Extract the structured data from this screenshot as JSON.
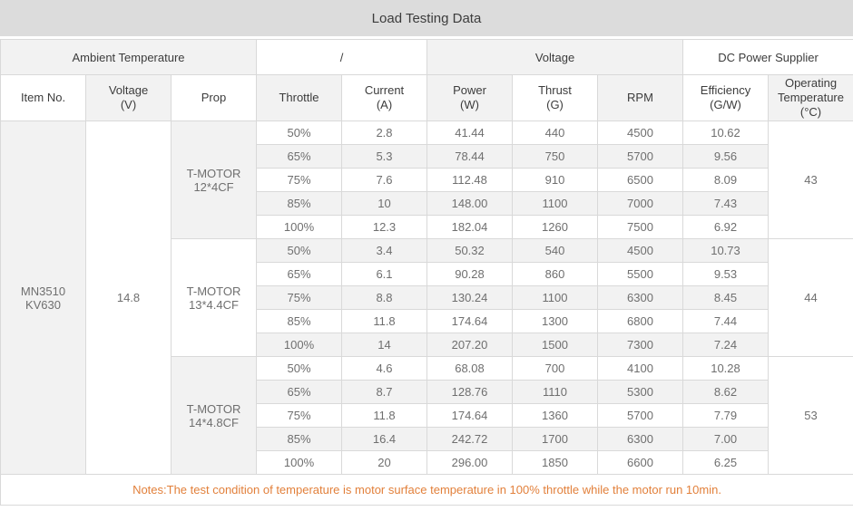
{
  "colors": {
    "title_bar_bg": "#dcdcdc",
    "shaded": "#f2f2f2",
    "border": "#d9d9d9",
    "header_text": "#3c3c3c",
    "body_text": "#6f6f6f",
    "muted_text": "#9c9c9c",
    "notes_text": "#e2803b"
  },
  "title": "Load Testing Data",
  "group_headers": {
    "ambient": "Ambient Temperature",
    "slash": "/",
    "voltage": "Voltage",
    "dc_power": "DC Power Supplier"
  },
  "columns": {
    "item_no": "Item No.",
    "voltage": "Voltage\n(V)",
    "prop": "Prop",
    "throttle": "Throttle",
    "current": "Current\n(A)",
    "power": "Power\n(W)",
    "thrust": "Thrust\n(G)",
    "rpm": "RPM",
    "efficiency": "Efficiency\n(G/W)",
    "operating_temperature": "Operating\nTemperature\n(°C)"
  },
  "item_no": "MN3510\nKV630",
  "voltage_v": "14.8",
  "prop_groups": [
    {
      "prop": "T-MOTOR\n12*4CF",
      "operating_temperature": "43",
      "rows": [
        {
          "throttle": "50%",
          "current": "2.8",
          "power": "41.44",
          "thrust": "440",
          "rpm": "4500",
          "efficiency": "10.62"
        },
        {
          "throttle": "65%",
          "current": "5.3",
          "power": "78.44",
          "thrust": "750",
          "rpm": "5700",
          "efficiency": "9.56"
        },
        {
          "throttle": "75%",
          "current": "7.6",
          "power": "112.48",
          "thrust": "910",
          "rpm": "6500",
          "efficiency": "8.09"
        },
        {
          "throttle": "85%",
          "current": "10",
          "power": "148.00",
          "thrust": "1100",
          "rpm": "7000",
          "efficiency": "7.43"
        },
        {
          "throttle": "100%",
          "current": "12.3",
          "power": "182.04",
          "thrust": "1260",
          "rpm": "7500",
          "efficiency": "6.92"
        }
      ]
    },
    {
      "prop": "T-MOTOR\n13*4.4CF",
      "operating_temperature": "44",
      "rows": [
        {
          "throttle": "50%",
          "current": "3.4",
          "power": "50.32",
          "thrust": "540",
          "rpm": "4500",
          "efficiency": "10.73"
        },
        {
          "throttle": "65%",
          "current": "6.1",
          "power": "90.28",
          "thrust": "860",
          "rpm": "5500",
          "efficiency": "9.53"
        },
        {
          "throttle": "75%",
          "current": "8.8",
          "power": "130.24",
          "thrust": "1100",
          "rpm": "6300",
          "efficiency": "8.45"
        },
        {
          "throttle": "85%",
          "current": "11.8",
          "power": "174.64",
          "thrust": "1300",
          "rpm": "6800",
          "efficiency": "7.44"
        },
        {
          "throttle": "100%",
          "current": "14",
          "power": "207.20",
          "thrust": "1500",
          "rpm": "7300",
          "efficiency": "7.24"
        }
      ]
    },
    {
      "prop": "T-MOTOR\n14*4.8CF",
      "operating_temperature": "53",
      "rows": [
        {
          "throttle": "50%",
          "current": "4.6",
          "power": "68.08",
          "thrust": "700",
          "rpm": "4100",
          "efficiency": "10.28"
        },
        {
          "throttle": "65%",
          "current": "8.7",
          "power": "128.76",
          "thrust": "1110",
          "rpm": "5300",
          "efficiency": "8.62"
        },
        {
          "throttle": "75%",
          "current": "11.8",
          "power": "174.64",
          "thrust": "1360",
          "rpm": "5700",
          "efficiency": "7.79"
        },
        {
          "throttle": "85%",
          "current": "16.4",
          "power": "242.72",
          "thrust": "1700",
          "rpm": "6300",
          "efficiency": "7.00"
        },
        {
          "throttle": "100%",
          "current": "20",
          "power": "296.00",
          "thrust": "1850",
          "rpm": "6600",
          "efficiency": "6.25"
        }
      ]
    }
  ],
  "notes": "Notes:The test condition of temperature is motor surface temperature in 100% throttle while the motor run 10min."
}
